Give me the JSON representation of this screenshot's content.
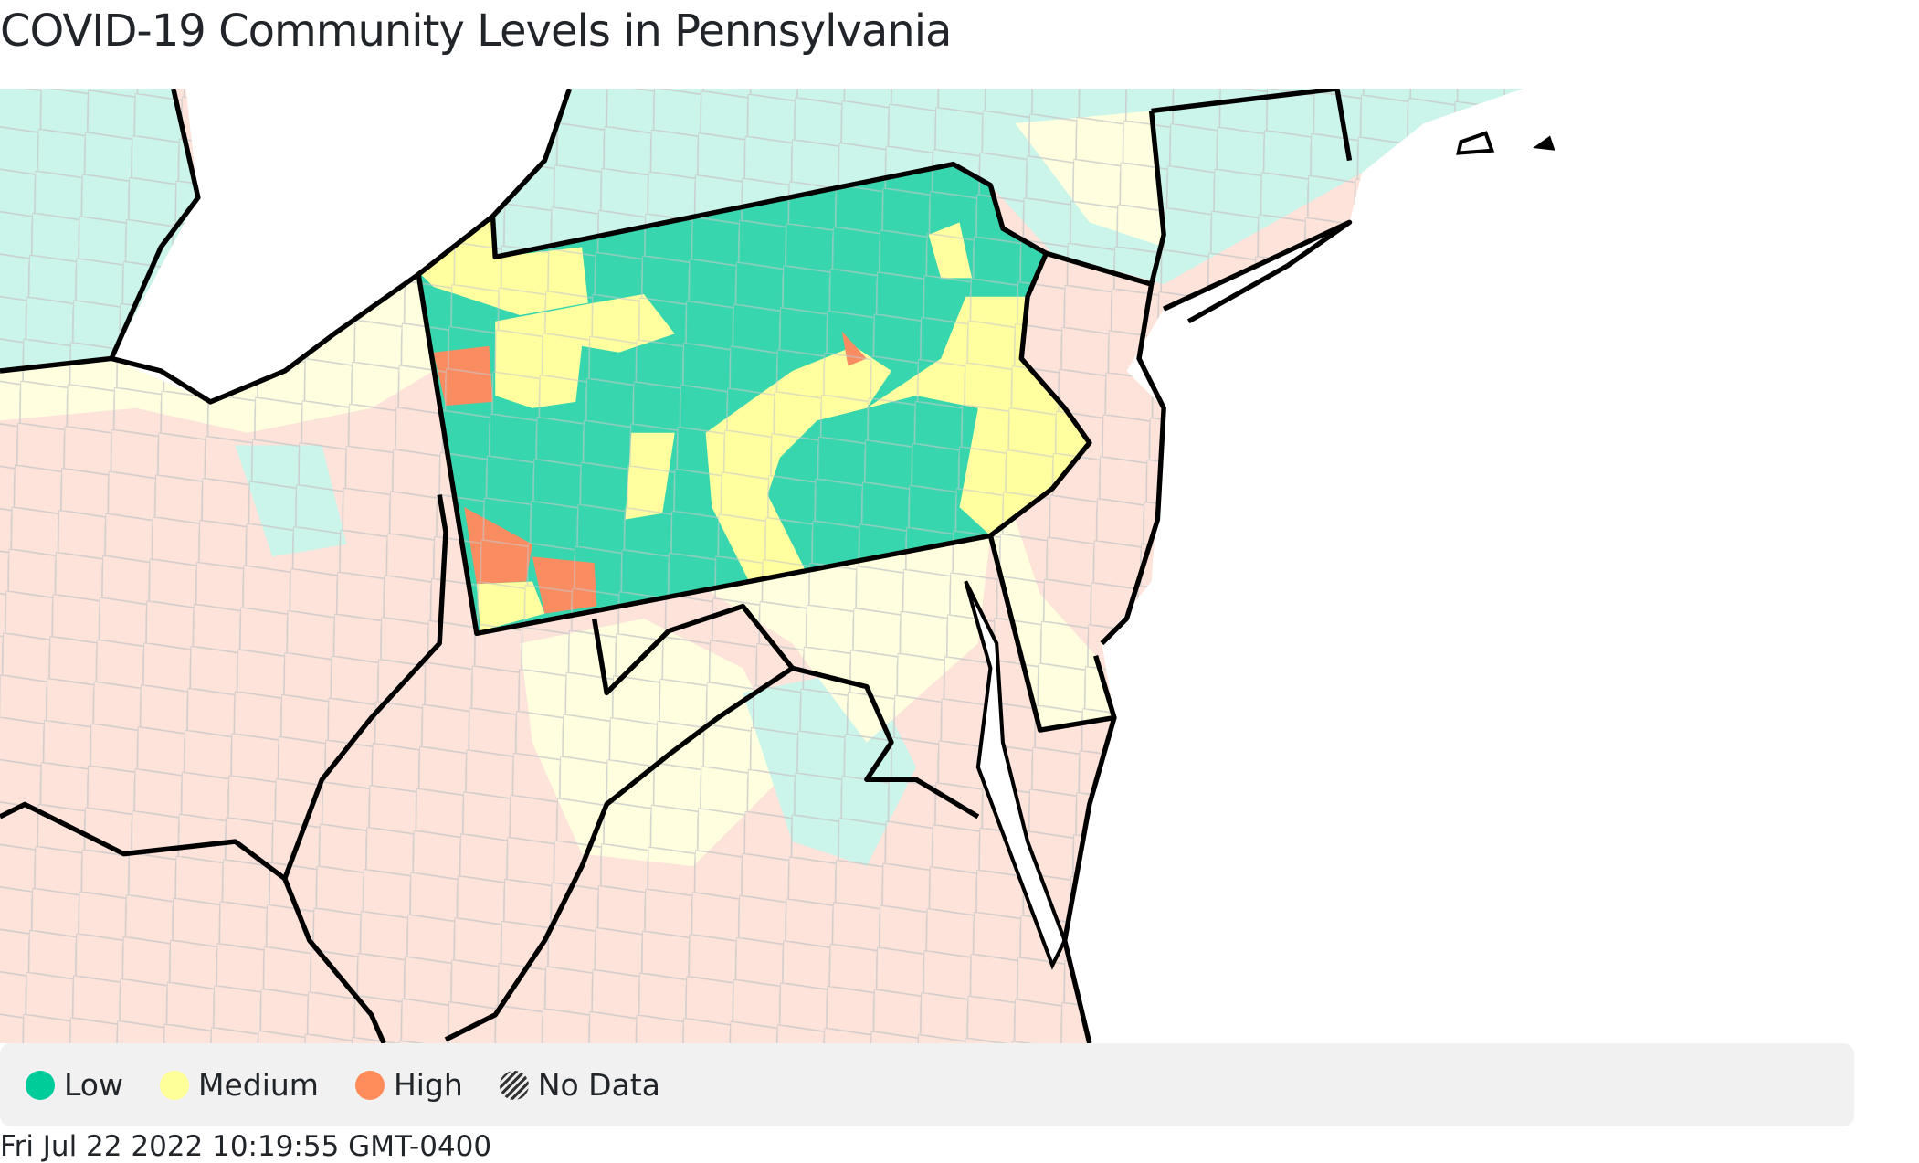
{
  "title": "COVID-19 Community Levels in Pennsylvania",
  "legend": [
    {
      "label": "Low",
      "color": "#00cc99"
    },
    {
      "label": "Medium",
      "color": "#ffff99"
    },
    {
      "label": "High",
      "color": "#ff8c5a"
    },
    {
      "label": "No Data",
      "pattern": "hatched"
    }
  ],
  "map_colors": {
    "low": "#38d6ae",
    "medium": "#ffffa0",
    "high": "#fa8c62",
    "low_faded": "#cbf4ea",
    "medium_faded": "#ffffe0",
    "high_faded": "#fde3da",
    "border": "#000000",
    "county_border": "#c8c8c8"
  },
  "timestamp": "Fri Jul 22 2022 10:19:55 GMT-0400"
}
